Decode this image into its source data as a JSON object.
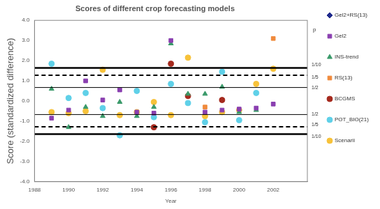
{
  "chart_data": {
    "type": "scatter",
    "title": "Scores of different crop forecasting models",
    "x_label": "Year",
    "y_label": "Score (standardized difference)",
    "x": [
      1989,
      1990,
      1991,
      1992,
      1993,
      1994,
      1995,
      1996,
      1997,
      1998,
      1999,
      2000,
      2001,
      2002
    ],
    "series": [
      {
        "name": "Gel2+RS(13)",
        "color": "#1f2a8c",
        "marker": "diamond",
        "values": [
          null,
          null,
          null,
          null,
          null,
          null,
          null,
          null,
          null,
          null,
          null,
          null,
          null,
          null
        ]
      },
      {
        "name": "Gel2",
        "color": "#8a3fb0",
        "marker": "square",
        "values": [
          -0.85,
          -0.45,
          1.0,
          0.05,
          0.55,
          -0.55,
          -0.6,
          3.0,
          null,
          -0.55,
          -0.45,
          -0.4,
          -0.35,
          -0.15
        ]
      },
      {
        "name": "INS-trend",
        "color": "#3a9a6a",
        "marker": "triangle",
        "values": [
          0.6,
          -1.3,
          -0.3,
          -0.75,
          -0.05,
          -0.75,
          -0.3,
          2.85,
          0.35,
          0.35,
          0.7,
          -0.55,
          -0.45,
          null
        ]
      },
      {
        "name": "RS(13)",
        "color": "#f08a3c",
        "marker": "square",
        "values": [
          null,
          null,
          null,
          null,
          null,
          null,
          null,
          null,
          null,
          -0.3,
          null,
          null,
          null,
          3.1
        ]
      },
      {
        "name": "BCGMS",
        "color": "#a52a1e",
        "marker": "circle",
        "values": [
          null,
          null,
          null,
          null,
          null,
          null,
          -1.3,
          1.85,
          0.25,
          null,
          0.05,
          null,
          null,
          null
        ]
      },
      {
        "name": "POT_BIO(21)",
        "color": "#5fd0e8",
        "marker": "circle",
        "values": [
          1.85,
          0.15,
          0.4,
          -0.35,
          -1.7,
          0.5,
          -0.8,
          0.85,
          -0.1,
          -1.05,
          1.45,
          -0.95,
          0.4,
          null
        ]
      },
      {
        "name": "Scenarii",
        "color": "#f7c23a",
        "marker": "circle",
        "values": [
          -0.55,
          -0.6,
          -0.5,
          1.55,
          -0.7,
          -0.55,
          -0.05,
          -0.7,
          2.15,
          -0.75,
          -0.55,
          -0.45,
          0.85,
          1.6
        ]
      }
    ],
    "xlim": [
      1988,
      2004
    ],
    "xticks": [
      1988,
      1990,
      1992,
      1994,
      1996,
      1998,
      2000,
      2002
    ],
    "ylim": [
      -4,
      4
    ],
    "yticks": [
      {
        "value": -4,
        "label": "-4.0"
      },
      {
        "value": -3,
        "label": "-3.0"
      },
      {
        "value": -2,
        "label": "-2.0"
      },
      {
        "value": -1,
        "label": "-1.0"
      },
      {
        "value": 0,
        "label": "0.0"
      },
      {
        "value": 1,
        "label": "1.0"
      },
      {
        "value": 2,
        "label": "2.0"
      },
      {
        "value": 3,
        "label": "3.0"
      },
      {
        "value": 4,
        "label": "4.0"
      }
    ],
    "reference_title": "p",
    "reference_lines": [
      {
        "value": 1.64,
        "label": "1/10",
        "line_style": "solid"
      },
      {
        "value": 1.28,
        "label": "1/5",
        "line_style": "dashed"
      },
      {
        "value": 0.67,
        "label": "1/2",
        "line_style": "thin"
      },
      {
        "value": -0.67,
        "label": "1/2",
        "line_style": "thin"
      },
      {
        "value": -1.28,
        "label": "1/5",
        "line_style": "dashed"
      },
      {
        "value": -1.64,
        "label": "1/10",
        "line_style": "solid"
      }
    ],
    "grid": false,
    "legend": "right"
  }
}
